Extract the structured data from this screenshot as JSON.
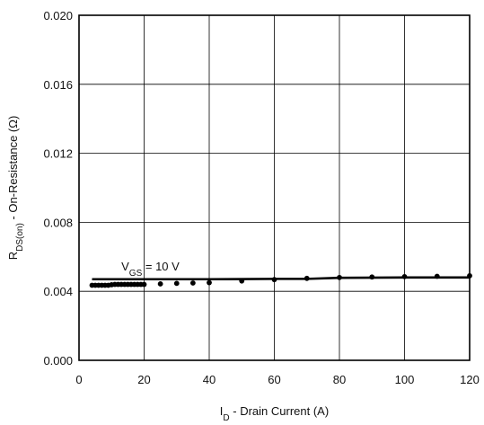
{
  "chart_data": {
    "type": "line",
    "xlabel": {
      "main": "I",
      "sub": "D",
      "rest": " - Drain Current (A)"
    },
    "ylabel": {
      "main": "R",
      "sub": "DS(on)",
      "rest": " - On-Resistance (Ω)"
    },
    "xlim": [
      0,
      120
    ],
    "ylim": [
      0,
      0.02
    ],
    "x_ticks": [
      0,
      20,
      40,
      60,
      80,
      100,
      120
    ],
    "x_tick_labels": [
      "0",
      "20",
      "40",
      "60",
      "80",
      "100",
      "120"
    ],
    "y_ticks": [
      0,
      0.004,
      0.008,
      0.012,
      0.016,
      0.02
    ],
    "y_tick_labels": [
      "0.000",
      "0.004",
      "0.008",
      "0.012",
      "0.016",
      "0.020"
    ],
    "grid": true,
    "annotation": {
      "main": "V",
      "sub": "GS",
      "rest": " = 10 V",
      "x": 13,
      "y": 0.0052
    },
    "series": [
      {
        "style": "line",
        "color": "#000000",
        "x": [
          4,
          10,
          20,
          40,
          60,
          70,
          80,
          100,
          120
        ],
        "y": [
          0.0047,
          0.0047,
          0.0047,
          0.0047,
          0.00472,
          0.00472,
          0.00478,
          0.0048,
          0.0048
        ]
      },
      {
        "style": "points",
        "color": "#000000",
        "x": [
          4,
          5,
          6,
          7,
          8,
          9,
          10,
          11,
          12,
          13,
          14,
          15,
          16,
          17,
          18,
          19,
          20,
          25,
          30,
          35,
          40,
          50,
          60,
          70,
          80,
          90,
          100,
          110,
          120
        ],
        "y": [
          0.00435,
          0.00435,
          0.00435,
          0.00435,
          0.00435,
          0.00435,
          0.00438,
          0.0044,
          0.0044,
          0.0044,
          0.0044,
          0.0044,
          0.0044,
          0.0044,
          0.0044,
          0.0044,
          0.0044,
          0.00443,
          0.00446,
          0.00448,
          0.0045,
          0.0046,
          0.00468,
          0.00475,
          0.0048,
          0.00483,
          0.00485,
          0.00487,
          0.0049
        ]
      }
    ]
  }
}
